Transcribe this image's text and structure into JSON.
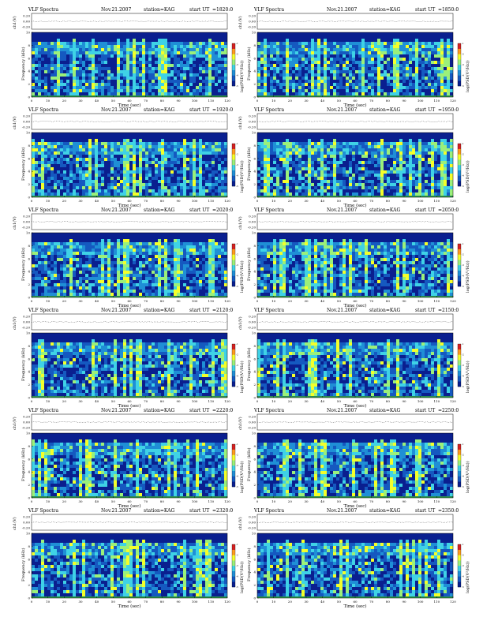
{
  "sheet": {
    "title_word": "VLF Spectra",
    "station_label": "station=KAG",
    "start_label": "start  UT",
    "ch_axis_label": "ch1(V)",
    "ch_ticks": [
      "0.20",
      "0.00",
      "-0.20"
    ],
    "freq_axis_label": "Frequency (kHz)",
    "colorbar_label": "log(PSD(V²/Hz))",
    "colorbar_ticks": [
      "-1",
      "-2",
      "-3",
      "-4",
      "-5"
    ],
    "colors": {
      "deep": "#0a1f8f",
      "mid": "#1f8fd6",
      "cyan": "#3fd2e6",
      "yellow": "#f4ff2a",
      "trace": "#333333",
      "bottom_line": "#3dcc33"
    }
  },
  "chart_data": [
    {
      "type": "heatmap",
      "title": "VLF Spectra    Nov.21.2007    station=KAG    start  UT  =1820:0",
      "date": "Nov.21.2007",
      "start_ut": "=1820:0",
      "xlabel": "Time  (sec)",
      "ylabel": "Frequency (kHz)",
      "x_ticks": [
        0,
        10,
        20,
        30,
        40,
        50,
        60,
        70,
        80,
        90,
        100,
        110,
        120
      ],
      "y_ticks": [
        0,
        2,
        4,
        6,
        8,
        10
      ],
      "xlim": [
        0,
        120
      ],
      "ylim": [
        0,
        10
      ],
      "colorbar_range": [
        -5,
        -1
      ]
    },
    {
      "type": "heatmap",
      "title": "VLF Spectra    Nov.21.2007    station=KAG    start  UT  =1850:0",
      "date": "Nov.21.2007",
      "start_ut": "=1850:0",
      "xlabel": "Time  (sec)",
      "ylabel": "Frequency (kHz)",
      "x_ticks": [
        0,
        10,
        20,
        30,
        40,
        50,
        60,
        70,
        80,
        90,
        100,
        110,
        120
      ],
      "y_ticks": [
        0,
        2,
        4,
        6,
        8,
        10
      ],
      "xlim": [
        0,
        120
      ],
      "ylim": [
        0,
        10
      ],
      "colorbar_range": [
        -5,
        -1
      ]
    },
    {
      "type": "heatmap",
      "title": "VLF Spectra    Nov.21.2007    station=KAG    start  UT  =1920:0",
      "date": "Nov.21.2007",
      "start_ut": "=1920:0",
      "xlabel": "Time  (sec)",
      "ylabel": "Frequency (kHz)",
      "x_ticks": [
        0,
        10,
        20,
        30,
        40,
        50,
        60,
        70,
        80,
        90,
        100,
        110,
        120
      ],
      "y_ticks": [
        0,
        2,
        4,
        6,
        8,
        10
      ],
      "xlim": [
        0,
        120
      ],
      "ylim": [
        0,
        10
      ],
      "colorbar_range": [
        -5,
        -1
      ]
    },
    {
      "type": "heatmap",
      "title": "VLF Spectra    Nov.21.2007    station=KAG    start  UT  =1950:0",
      "date": "Nov.21.2007",
      "start_ut": "=1950:0",
      "xlabel": "Time  (sec)",
      "ylabel": "Frequency (kHz)",
      "x_ticks": [
        0,
        10,
        20,
        30,
        40,
        50,
        60,
        70,
        80,
        90,
        100,
        110,
        120
      ],
      "y_ticks": [
        0,
        2,
        4,
        6,
        8,
        10
      ],
      "xlim": [
        0,
        120
      ],
      "ylim": [
        0,
        10
      ],
      "colorbar_range": [
        -5,
        -1
      ]
    },
    {
      "type": "heatmap",
      "title": "VLF Spectra    Nov.21.2007    station=KAG    start  UT  =2020:0",
      "date": "Nov.21.2007",
      "start_ut": "=2020:0",
      "xlabel": "Time  (sec)",
      "ylabel": "Frequency (kHz)",
      "x_ticks": [
        0,
        10,
        20,
        30,
        40,
        50,
        60,
        70,
        80,
        90,
        100,
        110,
        120
      ],
      "y_ticks": [
        0,
        2,
        4,
        6,
        8,
        10
      ],
      "xlim": [
        0,
        120
      ],
      "ylim": [
        0,
        10
      ],
      "colorbar_range": [
        -5,
        -1
      ]
    },
    {
      "type": "heatmap",
      "title": "VLF Spectra    Nov.21.2007    station=KAG    start  UT  =2050:0",
      "date": "Nov.21.2007",
      "start_ut": "=2050:0",
      "xlabel": "Time  (sec)",
      "ylabel": "Frequency (kHz)",
      "x_ticks": [
        0,
        10,
        20,
        30,
        40,
        50,
        60,
        70,
        80,
        90,
        100,
        110,
        120
      ],
      "y_ticks": [
        0,
        2,
        4,
        6,
        8,
        10
      ],
      "xlim": [
        0,
        120
      ],
      "ylim": [
        0,
        10
      ],
      "colorbar_range": [
        -5,
        -1
      ]
    },
    {
      "type": "heatmap",
      "title": "VLF Spectra    Nov.21.2007    station=KAG    start  UT  =2120:0",
      "date": "Nov.21.2007",
      "start_ut": "=2120:0",
      "xlabel": "Time  (sec)",
      "ylabel": "Frequency (kHz)",
      "x_ticks": [
        0,
        10,
        20,
        30,
        40,
        50,
        60,
        70,
        80,
        90,
        100,
        110,
        120
      ],
      "y_ticks": [
        0,
        2,
        4,
        6,
        8,
        10
      ],
      "xlim": [
        0,
        120
      ],
      "ylim": [
        0,
        10
      ],
      "colorbar_range": [
        -5,
        -1
      ]
    },
    {
      "type": "heatmap",
      "title": "VLF Spectra    Nov.21.2007    station=KAG    start  UT  =2150:0",
      "date": "Nov.21.2007",
      "start_ut": "=2150:0",
      "xlabel": "Time  (sec)",
      "ylabel": "Frequency (kHz)",
      "x_ticks": [
        0,
        10,
        20,
        30,
        40,
        50,
        60,
        70,
        80,
        90,
        100,
        110,
        120
      ],
      "y_ticks": [
        0,
        2,
        4,
        6,
        8,
        10
      ],
      "xlim": [
        0,
        120
      ],
      "ylim": [
        0,
        10
      ],
      "colorbar_range": [
        -5,
        -1
      ]
    },
    {
      "type": "heatmap",
      "title": "VLF Spectra    Nov.21.2007    station=KAG    start  UT  =2220:0",
      "date": "Nov.21.2007",
      "start_ut": "=2220:0",
      "xlabel": "Time  (sec)",
      "ylabel": "Frequency (kHz)",
      "x_ticks": [
        0,
        10,
        20,
        30,
        40,
        50,
        60,
        70,
        80,
        90,
        100,
        110,
        120
      ],
      "y_ticks": [
        0,
        2,
        4,
        6,
        8,
        10
      ],
      "xlim": [
        0,
        120
      ],
      "ylim": [
        0,
        10
      ],
      "colorbar_range": [
        -5,
        -1
      ]
    },
    {
      "type": "heatmap",
      "title": "VLF Spectra    Nov.21.2007    station=KAG    start  UT  =2250:0",
      "date": "Nov.21.2007",
      "start_ut": "=2250:0",
      "xlabel": "Time  (sec)",
      "ylabel": "Frequency (kHz)",
      "x_ticks": [
        0,
        10,
        20,
        30,
        40,
        50,
        60,
        70,
        80,
        90,
        100,
        110,
        120
      ],
      "y_ticks": [
        0,
        2,
        4,
        6,
        8,
        10
      ],
      "xlim": [
        0,
        120
      ],
      "ylim": [
        0,
        10
      ],
      "colorbar_range": [
        -5,
        -1
      ]
    },
    {
      "type": "heatmap",
      "title": "VLF Spectra    Nov.21.2007    station=KAG    start  UT  =2320:0",
      "date": "Nov.21.2007",
      "start_ut": "=2320:0",
      "xlabel": "Time  (sec)",
      "ylabel": "Frequency (kHz)",
      "x_ticks": [
        0,
        10,
        20,
        30,
        40,
        50,
        60,
        70,
        80,
        90,
        100,
        110,
        120
      ],
      "y_ticks": [
        0,
        2,
        4,
        6,
        8,
        10
      ],
      "xlim": [
        0,
        120
      ],
      "ylim": [
        0,
        10
      ],
      "colorbar_range": [
        -5,
        -1
      ]
    },
    {
      "type": "heatmap",
      "title": "VLF Spectra    Nov.21.2007    station=KAG    start  UT  =2350:0",
      "date": "Nov.21.2007",
      "start_ut": "=2350:0",
      "xlabel": "Time  (sec)",
      "ylabel": "Frequency (kHz)",
      "x_ticks": [
        0,
        10,
        20,
        30,
        40,
        50,
        60,
        70,
        80,
        90,
        100,
        110,
        120
      ],
      "y_ticks": [
        0,
        2,
        4,
        6,
        8,
        10
      ],
      "xlim": [
        0,
        120
      ],
      "ylim": [
        0,
        10
      ],
      "colorbar_range": [
        -5,
        -1
      ]
    }
  ]
}
